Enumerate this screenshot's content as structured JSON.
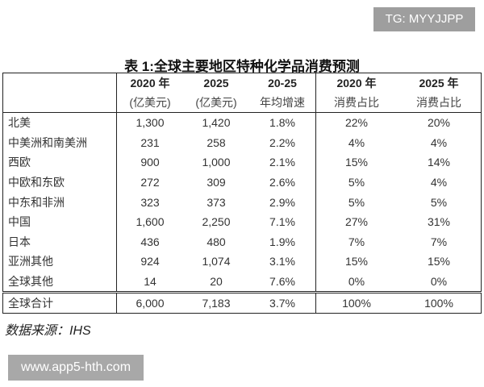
{
  "watermark_top": "TG: MYYJJPP",
  "title": "表 1:全球主要地区特种化学品消费预测",
  "headers": {
    "row1": [
      "2020 年",
      "2025",
      "20-25",
      "2020 年",
      "2025 年"
    ],
    "row2": [
      "(亿美元)",
      "(亿美元)",
      "年均增速",
      "消费占比",
      "消费占比"
    ]
  },
  "rows": [
    [
      "北美",
      "1,300",
      "1,420",
      "1.8%",
      "22%",
      "20%"
    ],
    [
      "中美洲和南美洲",
      "231",
      "258",
      "2.2%",
      "4%",
      "4%"
    ],
    [
      "西欧",
      "900",
      "1,000",
      "2.1%",
      "15%",
      "14%"
    ],
    [
      "中欧和东欧",
      "272",
      "309",
      "2.6%",
      "5%",
      "4%"
    ],
    [
      "中东和非洲",
      "323",
      "373",
      "2.9%",
      "5%",
      "5%"
    ],
    [
      "中国",
      "1,600",
      "2,250",
      "7.1%",
      "27%",
      "31%"
    ],
    [
      "日本",
      "436",
      "480",
      "1.9%",
      "7%",
      "7%"
    ],
    [
      "亚洲其他",
      "924",
      "1,074",
      "3.1%",
      "15%",
      "15%"
    ],
    [
      "全球其他",
      "14",
      "20",
      "7.6%",
      "0%",
      "0%"
    ]
  ],
  "total": [
    "全球合计",
    "6,000",
    "7,183",
    "3.7%",
    "100%",
    "100%"
  ],
  "source": "数据来源：IHS",
  "watermark_bottom": "www.app5-hth.com"
}
